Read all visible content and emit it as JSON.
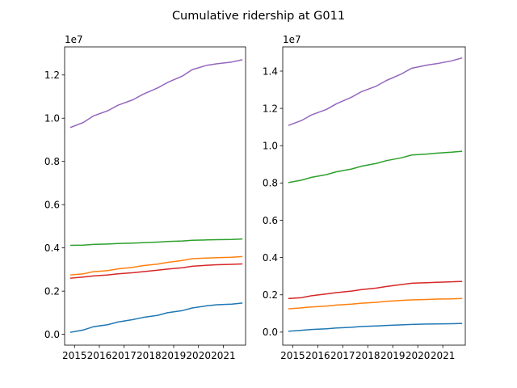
{
  "title": "Cumulative ridership at G011",
  "chart_data": [
    {
      "type": "line",
      "title": "",
      "xlabel": "",
      "ylabel": "",
      "offset_text": "1e7",
      "xlim": [
        2014.6,
        2021.9
      ],
      "ylim": [
        -0.05,
        1.33
      ],
      "x_ticks": [
        2015,
        2016,
        2017,
        2018,
        2019,
        2020,
        2021
      ],
      "x_tick_labels": [
        "2015",
        "2016",
        "2017",
        "2018",
        "2019",
        "2020",
        "2021"
      ],
      "y_ticks": [
        0.0,
        0.2,
        0.4,
        0.6,
        0.8,
        1.0,
        1.2
      ],
      "y_tick_labels": [
        "0.0",
        "0.2",
        "0.4",
        "0.6",
        "0.8",
        "1.0",
        "1.2"
      ],
      "grid": false,
      "series": [
        {
          "color": "#1f77b4",
          "x": [
            2014.85,
            2015.35,
            2015.75,
            2016.35,
            2016.75,
            2017.35,
            2017.75,
            2018.35,
            2018.75,
            2019.35,
            2019.75,
            2020.35,
            2020.75,
            2021.35,
            2021.75
          ],
          "y": [
            0.01,
            0.02,
            0.035,
            0.045,
            0.057,
            0.068,
            0.078,
            0.088,
            0.1,
            0.11,
            0.122,
            0.132,
            0.137,
            0.14,
            0.145
          ]
        },
        {
          "color": "#ff7f0e",
          "x": [
            2014.85,
            2015.35,
            2015.75,
            2016.35,
            2016.75,
            2017.35,
            2017.75,
            2018.35,
            2018.75,
            2019.35,
            2019.75,
            2020.35,
            2020.75,
            2021.35,
            2021.75
          ],
          "y": [
            0.275,
            0.28,
            0.29,
            0.295,
            0.303,
            0.31,
            0.318,
            0.325,
            0.333,
            0.342,
            0.35,
            0.353,
            0.355,
            0.357,
            0.36
          ]
        },
        {
          "color": "#2ca02c",
          "x": [
            2014.85,
            2015.35,
            2015.75,
            2016.35,
            2016.75,
            2017.35,
            2017.75,
            2018.35,
            2018.75,
            2019.35,
            2019.75,
            2020.35,
            2020.75,
            2021.35,
            2021.75
          ],
          "y": [
            0.412,
            0.413,
            0.416,
            0.418,
            0.42,
            0.422,
            0.424,
            0.427,
            0.43,
            0.432,
            0.435,
            0.437,
            0.438,
            0.439,
            0.441
          ]
        },
        {
          "color": "#d62728",
          "x": [
            2014.85,
            2015.35,
            2015.75,
            2016.35,
            2016.75,
            2017.35,
            2017.75,
            2018.35,
            2018.75,
            2019.35,
            2019.75,
            2020.35,
            2020.75,
            2021.35,
            2021.75
          ],
          "y": [
            0.26,
            0.265,
            0.27,
            0.275,
            0.28,
            0.285,
            0.29,
            0.297,
            0.302,
            0.308,
            0.315,
            0.32,
            0.322,
            0.324,
            0.326
          ]
        },
        {
          "color": "#9467bd",
          "x": [
            2014.85,
            2015.35,
            2015.75,
            2016.35,
            2016.75,
            2017.35,
            2017.75,
            2018.35,
            2018.75,
            2019.35,
            2019.75,
            2020.35,
            2020.75,
            2021.35,
            2021.75
          ],
          "y": [
            0.958,
            0.98,
            1.01,
            1.035,
            1.06,
            1.085,
            1.11,
            1.14,
            1.165,
            1.195,
            1.225,
            1.245,
            1.252,
            1.26,
            1.27
          ]
        }
      ]
    },
    {
      "type": "line",
      "title": "",
      "xlabel": "",
      "ylabel": "",
      "offset_text": "1e7",
      "xlim": [
        2014.6,
        2021.9
      ],
      "ylim": [
        -0.07,
        1.53
      ],
      "x_ticks": [
        2015,
        2016,
        2017,
        2018,
        2019,
        2020,
        2021
      ],
      "x_tick_labels": [
        "2015",
        "2016",
        "2017",
        "2018",
        "2019",
        "2020",
        "2021"
      ],
      "y_ticks": [
        0.0,
        0.2,
        0.4,
        0.6,
        0.8,
        1.0,
        1.2,
        1.4
      ],
      "y_tick_labels": [
        "0.0",
        "0.2",
        "0.4",
        "0.6",
        "0.8",
        "1.0",
        "1.2",
        "1.4"
      ],
      "grid": false,
      "series": [
        {
          "color": "#1f77b4",
          "x": [
            2014.85,
            2015.35,
            2015.75,
            2016.35,
            2016.75,
            2017.35,
            2017.75,
            2018.35,
            2018.75,
            2019.35,
            2019.75,
            2020.35,
            2020.75,
            2021.35,
            2021.75
          ],
          "y": [
            0.005,
            0.01,
            0.014,
            0.018,
            0.022,
            0.026,
            0.03,
            0.033,
            0.036,
            0.039,
            0.041,
            0.043,
            0.044,
            0.045,
            0.046
          ]
        },
        {
          "color": "#ff7f0e",
          "x": [
            2014.85,
            2015.35,
            2015.75,
            2016.35,
            2016.75,
            2017.35,
            2017.75,
            2018.35,
            2018.75,
            2019.35,
            2019.75,
            2020.35,
            2020.75,
            2021.35,
            2021.75
          ],
          "y": [
            0.125,
            0.13,
            0.135,
            0.14,
            0.145,
            0.15,
            0.155,
            0.16,
            0.165,
            0.17,
            0.173,
            0.175,
            0.177,
            0.178,
            0.18
          ]
        },
        {
          "color": "#2ca02c",
          "x": [
            2014.85,
            2015.35,
            2015.75,
            2016.35,
            2016.75,
            2017.35,
            2017.75,
            2018.35,
            2018.75,
            2019.35,
            2019.75,
            2020.35,
            2020.75,
            2021.35,
            2021.75
          ],
          "y": [
            0.803,
            0.815,
            0.83,
            0.845,
            0.86,
            0.875,
            0.89,
            0.905,
            0.92,
            0.935,
            0.95,
            0.955,
            0.96,
            0.965,
            0.97
          ]
        },
        {
          "color": "#d62728",
          "x": [
            2014.85,
            2015.35,
            2015.75,
            2016.35,
            2016.75,
            2017.35,
            2017.75,
            2018.35,
            2018.75,
            2019.35,
            2019.75,
            2020.35,
            2020.75,
            2021.35,
            2021.75
          ],
          "y": [
            0.18,
            0.185,
            0.195,
            0.205,
            0.212,
            0.22,
            0.228,
            0.236,
            0.245,
            0.255,
            0.262,
            0.265,
            0.267,
            0.27,
            0.272
          ]
        },
        {
          "color": "#9467bd",
          "x": [
            2014.85,
            2015.35,
            2015.75,
            2016.35,
            2016.75,
            2017.35,
            2017.75,
            2018.35,
            2018.75,
            2019.35,
            2019.75,
            2020.35,
            2020.75,
            2021.35,
            2021.75
          ],
          "y": [
            1.11,
            1.135,
            1.165,
            1.195,
            1.225,
            1.26,
            1.29,
            1.32,
            1.35,
            1.385,
            1.415,
            1.432,
            1.44,
            1.455,
            1.47
          ]
        }
      ]
    }
  ]
}
